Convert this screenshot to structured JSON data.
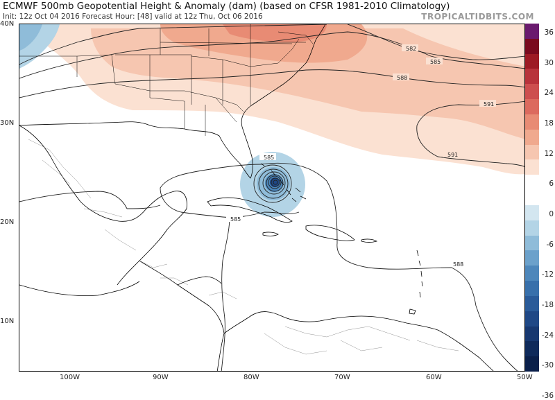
{
  "header": {
    "title": "ECMWF 500mb Geopotential Height & Anomaly (dam) (based on CFSR 1981-2010 Climatology)",
    "subtitle": "Init: 12z Oct 04 2016   Forecast Hour: [48]   valid at 12z Thu, Oct 06 2016",
    "brand": "TROPICALTIDBITS.COM"
  },
  "map": {
    "lat_labels": [
      "40N",
      "30N",
      "20N",
      "10N"
    ],
    "lon_labels": [
      "100W",
      "90W",
      "80W",
      "70W",
      "60W",
      "50W"
    ],
    "contour_labels": {
      "c582": "582",
      "c585a": "585",
      "c588a": "588",
      "c591a": "591",
      "c591b": "591",
      "c585b": "585",
      "c585c": "585",
      "c588b": "588"
    }
  },
  "colorbar": {
    "ticks": [
      "36",
      "30",
      "24",
      "18",
      "12",
      "6",
      "0",
      "-6",
      "-12",
      "-18",
      "-24",
      "-30",
      "-36"
    ],
    "colors": [
      "#6a1a6e",
      "#7a0a1e",
      "#9d1a24",
      "#b8323a",
      "#cd4e4e",
      "#dc6a5e",
      "#e88b74",
      "#f0a98e",
      "#f6c6b0",
      "#fbe1d2",
      "#ffffff",
      "#ffffff",
      "#d3e6f0",
      "#b3d4e6",
      "#8fbcd9",
      "#6ba1cb",
      "#4d87bb",
      "#3870ab",
      "#2a5b99",
      "#1f4886",
      "#173870",
      "#0f2a5b",
      "#0a1f4a"
    ]
  }
}
